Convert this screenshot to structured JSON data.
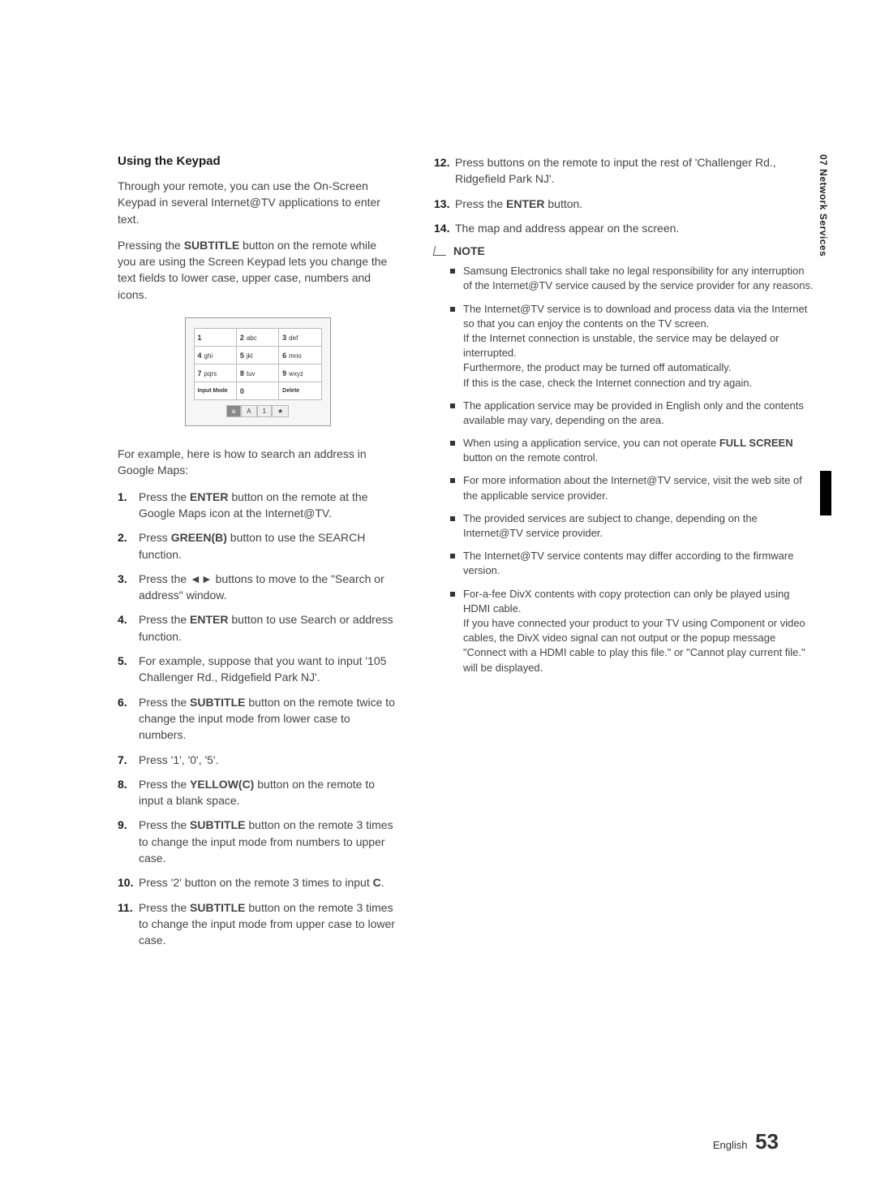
{
  "sideTab": "07   Network Services",
  "footer": {
    "lang": "English",
    "page": "53"
  },
  "left": {
    "title": "Using the Keypad",
    "p1_a": "Through your remote, you can use the On-Screen Keypad in several Internet@TV applications to enter text.",
    "p2_pre": "Pressing the ",
    "p2_bold": "SUBTITLE",
    "p2_post": " button on the remote while you are using the Screen Keypad lets you change the text fields to lower case, upper case, numbers and icons.",
    "keypad": {
      "rows": [
        [
          {
            "n": "1",
            "t": ""
          },
          {
            "n": "2",
            "t": "abc"
          },
          {
            "n": "3",
            "t": "def"
          }
        ],
        [
          {
            "n": "4",
            "t": "ghi"
          },
          {
            "n": "5",
            "t": "jkl"
          },
          {
            "n": "6",
            "t": "mno"
          }
        ],
        [
          {
            "n": "7",
            "t": "pqrs"
          },
          {
            "n": "8",
            "t": "tuv"
          },
          {
            "n": "9",
            "t": "wxyz"
          }
        ],
        [
          {
            "n": "Input Mode",
            "t": ""
          },
          {
            "n": "0",
            "t": ""
          },
          {
            "n": "Delete",
            "t": ""
          }
        ]
      ],
      "modes": [
        "a",
        "A",
        "1",
        "★"
      ]
    },
    "p3": "For example, here is how to search an address in Google Maps:",
    "steps": [
      {
        "n": "1.",
        "pre": "Press the ",
        "b": "ENTER",
        "post": " button on the remote at the Google Maps icon at the Internet@TV."
      },
      {
        "n": "2.",
        "pre": "Press ",
        "b": "GREEN(B)",
        "post": " button to use the SEARCH function."
      },
      {
        "n": "3.",
        "pre": "Press the ",
        "b": "◄►",
        "post": " buttons to move to the \"Search or address\" window."
      },
      {
        "n": "4.",
        "pre": "Press the ",
        "b": "ENTER",
        "post": " button to use Search or address function."
      },
      {
        "n": "5.",
        "pre": "For example, suppose that you want to input '105 Challenger Rd., Ridgefield Park NJ'.",
        "b": "",
        "post": ""
      },
      {
        "n": "6.",
        "pre": "Press the ",
        "b": "SUBTITLE",
        "post": " button on the remote twice to change the input mode from lower case to numbers."
      },
      {
        "n": "7.",
        "pre": "Press '1', '0', '5'.",
        "b": "",
        "post": ""
      },
      {
        "n": "8.",
        "pre": "Press the ",
        "b": "YELLOW(C)",
        "post": " button on the remote to input a blank space."
      },
      {
        "n": "9.",
        "pre": "Press the ",
        "b": "SUBTITLE",
        "post": " button on the remote 3 times to change the input mode from numbers to upper case."
      },
      {
        "n": "10.",
        "pre": "Press '2' button on the remote 3 times to input ",
        "b": "C",
        "post": "."
      },
      {
        "n": "11.",
        "pre": "Press the ",
        "b": "SUBTITLE",
        "post": " button on the remote 3 times to change the input mode from upper case to lower case."
      }
    ]
  },
  "right": {
    "stepsCont": [
      {
        "n": "12.",
        "pre": "Press buttons on the remote to input the rest of 'Challenger Rd., Ridgefield Park NJ'.",
        "b": "",
        "post": ""
      },
      {
        "n": "13.",
        "pre": "Press the ",
        "b": "ENTER",
        "post": " button."
      },
      {
        "n": "14.",
        "pre": "The map and address appear on the screen.",
        "b": "",
        "post": ""
      }
    ],
    "noteLabel": "NOTE",
    "notes": [
      "Samsung Electronics shall take no legal responsibility for any interruption of the Internet@TV service caused by the service provider for any reasons.",
      "The Internet@TV service is to download and process data via the Internet so that you can enjoy the contents on the TV screen.\nIf the Internet connection is unstable, the service may be delayed or interrupted.\nFurthermore, the product may be turned off automatically.\nIf this is the case, check the Internet connection and try again.",
      "The application service may be provided in English only and the contents available may vary, depending on the area.",
      "When using a application service, you can not operate FULL SCREEN button on the remote control.",
      "For more information about the Internet@TV service, visit the web site of the applicable service provider.",
      "The provided services are subject to change, depending on the Internet@TV service provider.",
      "The Internet@TV service contents may differ according to the firmware version.",
      "For-a-fee DivX contents with copy protection can only be played using HDMI cable.\nIf you have connected your product to your TV using Component or video cables, the DivX video signal can not output or the popup message \"Connect with a HDMI cable to play this file.\" or \"Cannot play current file.\" will be displayed."
    ],
    "note4_bold": "FULL SCREEN"
  }
}
